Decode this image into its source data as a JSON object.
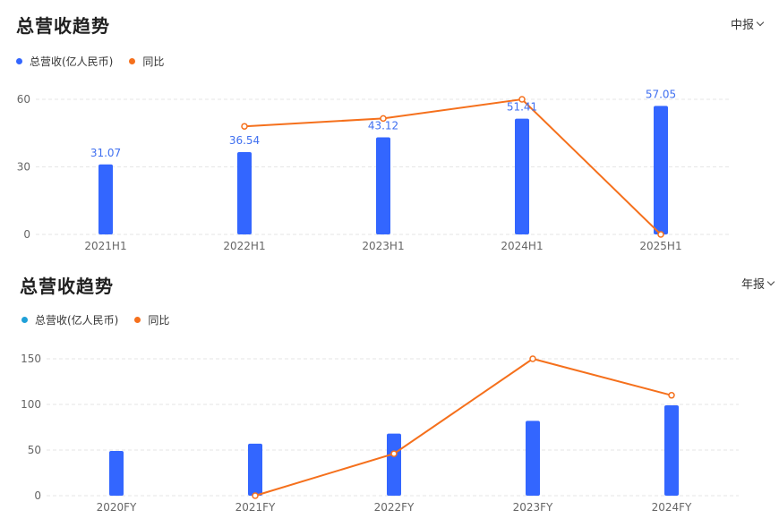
{
  "colors": {
    "bar": "#3366ff",
    "line": "#f5701c",
    "legend_bar_b": "#1fa0d8",
    "label": "#3f6ff0",
    "grid": "#e6e6e6"
  },
  "panels": [
    {
      "title": "总营收趋势",
      "period": "中报",
      "legend_bar": "总营收(亿人民币)",
      "legend_line": "同比"
    },
    {
      "title": "总营收趋势",
      "period": "年报",
      "legend_bar": "总营收(亿人民币)",
      "legend_line": "同比"
    }
  ],
  "chart_data": [
    {
      "type": "bar",
      "categories": [
        "2021H1",
        "2022H1",
        "2023H1",
        "2024H1",
        "2025H1"
      ],
      "series": [
        {
          "name": "总营收(亿人民币)",
          "type": "bar",
          "values": [
            31.07,
            36.54,
            43.12,
            51.41,
            57.05
          ]
        },
        {
          "name": "同比",
          "type": "line",
          "values": [
            null,
            48,
            51.5,
            60,
            0
          ]
        }
      ],
      "data_labels": [
        "31.07",
        "36.54",
        "43.12",
        "51.41",
        "57.05"
      ],
      "yticks": [
        0,
        30,
        60
      ],
      "ylim": [
        0,
        60
      ],
      "grid": true,
      "legend": "top-left"
    },
    {
      "type": "bar",
      "categories": [
        "2020FY",
        "2021FY",
        "2022FY",
        "2023FY",
        "2024FY"
      ],
      "series": [
        {
          "name": "总营收(亿人民币)",
          "type": "bar",
          "values": [
            49,
            57,
            68,
            82,
            99
          ]
        },
        {
          "name": "同比",
          "type": "line",
          "values": [
            null,
            0,
            46,
            150,
            110
          ]
        }
      ],
      "yticks": [
        0,
        50,
        100,
        150
      ],
      "ylim": [
        0,
        150
      ],
      "grid": true,
      "legend": "top-left"
    }
  ]
}
